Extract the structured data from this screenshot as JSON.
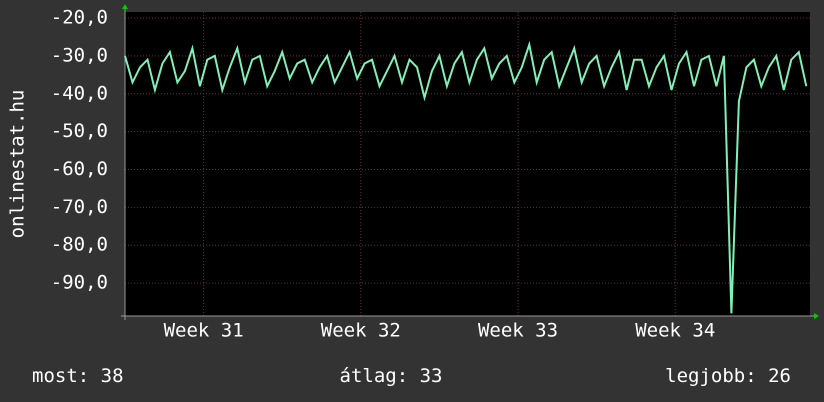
{
  "chart_data": {
    "type": "line",
    "ylabel": "onlinestat.hu",
    "x": [
      0,
      8,
      16,
      24,
      32,
      40,
      48,
      56,
      64,
      72,
      80,
      88,
      96,
      104,
      112,
      120,
      128,
      136,
      144,
      152,
      160,
      168,
      176,
      184,
      192,
      200,
      208,
      216,
      224,
      232,
      240,
      248,
      256,
      264,
      272,
      280,
      288,
      296,
      304,
      312,
      320,
      328,
      336,
      344,
      352,
      360,
      368,
      376,
      384,
      392,
      400,
      408,
      416,
      424,
      432,
      440,
      448,
      456,
      464,
      472,
      480,
      488,
      496,
      504,
      512,
      520,
      528,
      536,
      544,
      552,
      560,
      568,
      576,
      584,
      592,
      600,
      608,
      616,
      624,
      632,
      640,
      648,
      656,
      664,
      672,
      680,
      688,
      696,
      704,
      712,
      720,
      728
    ],
    "series": [
      {
        "color": "#7ff0b8",
        "values": [
          -30,
          -37,
          -33,
          -31,
          -39,
          -32,
          -29,
          -37,
          -34,
          -28,
          -38,
          -31,
          -30,
          -39,
          -33,
          -28,
          -37,
          -31,
          -30,
          -38,
          -34,
          -29,
          -36,
          -32,
          -31,
          -37,
          -33,
          -30,
          -37,
          -33,
          -29,
          -36,
          -32,
          -31,
          -38,
          -34,
          -30,
          -37,
          -31,
          -33,
          -41,
          -34,
          -30,
          -38,
          -32,
          -29,
          -37,
          -31,
          -28,
          -36,
          -32,
          -30,
          -37,
          -33,
          -27,
          -37,
          -31,
          -29,
          -38,
          -33,
          -28,
          -37,
          -32,
          -30,
          -38,
          -33,
          -29,
          -39,
          -31,
          -31,
          -38,
          -33,
          -30,
          -39,
          -32,
          -29,
          -38,
          -31,
          -30,
          -38,
          -30,
          -98,
          -42,
          -33,
          -31,
          -38,
          -33,
          -30,
          -39,
          -31,
          -29,
          -38
        ]
      }
    ],
    "xlim": [
      0,
      732
    ],
    "xticks": [
      {
        "value": 84,
        "label": "Week 31"
      },
      {
        "value": 252,
        "label": "Week 32"
      },
      {
        "value": 420,
        "label": "Week 33"
      },
      {
        "value": 588,
        "label": "Week 34"
      }
    ],
    "ylim": [
      -98.7,
      -18.4
    ],
    "yticks": [
      {
        "value": -20,
        "label": "-20,0"
      },
      {
        "value": -30,
        "label": "-30,0"
      },
      {
        "value": -40,
        "label": "-40,0"
      },
      {
        "value": -50,
        "label": "-50,0"
      },
      {
        "value": -60,
        "label": "-60,0"
      },
      {
        "value": -70,
        "label": "-70,0"
      },
      {
        "value": -80,
        "label": "-80,0"
      },
      {
        "value": -90,
        "label": "-90,0"
      }
    ],
    "grid": true,
    "stats": [
      {
        "label": "most:",
        "value": 38
      },
      {
        "label": "átlag:",
        "value": 33
      },
      {
        "label": "legjobb:",
        "value": 26
      }
    ]
  }
}
